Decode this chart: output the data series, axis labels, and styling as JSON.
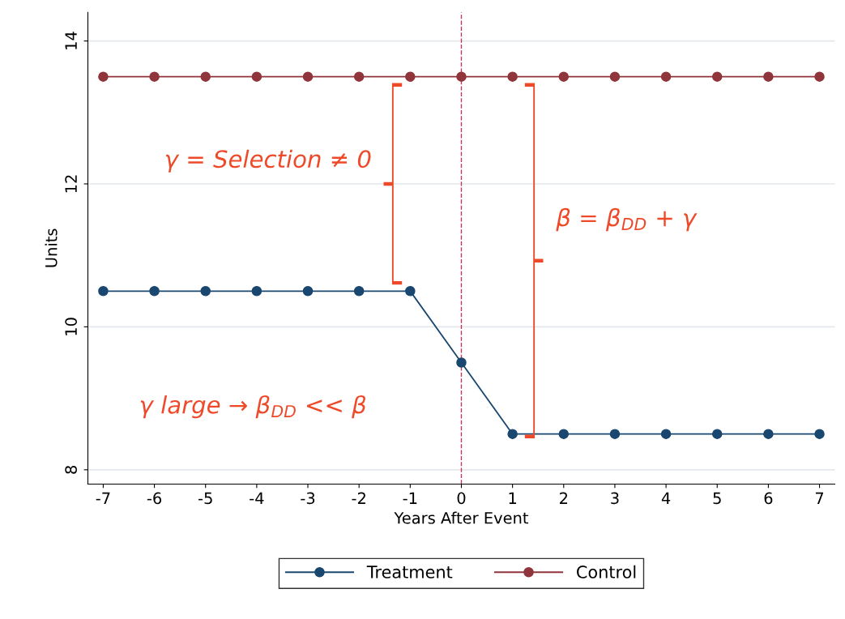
{
  "chart_data": {
    "type": "line",
    "x": [
      -7,
      -6,
      -5,
      -4,
      -3,
      -2,
      -1,
      0,
      1,
      2,
      3,
      4,
      5,
      6,
      7
    ],
    "series": [
      {
        "name": "Treatment",
        "color": "#1a476f",
        "values": [
          10.5,
          10.5,
          10.5,
          10.5,
          10.5,
          10.5,
          10.5,
          9.5,
          8.5,
          8.5,
          8.5,
          8.5,
          8.5,
          8.5,
          8.5
        ]
      },
      {
        "name": "Control",
        "color": "#90353b",
        "values": [
          13.5,
          13.5,
          13.5,
          13.5,
          13.5,
          13.5,
          13.5,
          13.5,
          13.5,
          13.5,
          13.5,
          13.5,
          13.5,
          13.5,
          13.5
        ]
      }
    ],
    "xlabel": "Years After Event",
    "ylabel": "Units",
    "xlim": [
      -7.3,
      7.3
    ],
    "ylim": [
      7.8,
      14.4
    ],
    "xticks": [
      {
        "value": -7,
        "label": "-7"
      },
      {
        "value": -6,
        "label": "-6"
      },
      {
        "value": -5,
        "label": "-5"
      },
      {
        "value": -4,
        "label": "-4"
      },
      {
        "value": -3,
        "label": "-3"
      },
      {
        "value": -2,
        "label": "-2"
      },
      {
        "value": -1,
        "label": "-1"
      },
      0,
      1,
      2,
      3,
      4,
      5,
      6,
      7
    ],
    "yticks": [
      8,
      10,
      12,
      14
    ],
    "ref_lines": [
      {
        "axis": "x",
        "value": 0,
        "color": "#c0395a",
        "line_style": "dashed"
      }
    ],
    "annotations": [
      "γ = Selection ≠ 0",
      "β = β$_{DD}$ + γ",
      "γ large → β$_{DD}$ << β"
    ],
    "grid": "y",
    "legend": "bottom",
    "marker": "circle",
    "line_style": "solid"
  }
}
